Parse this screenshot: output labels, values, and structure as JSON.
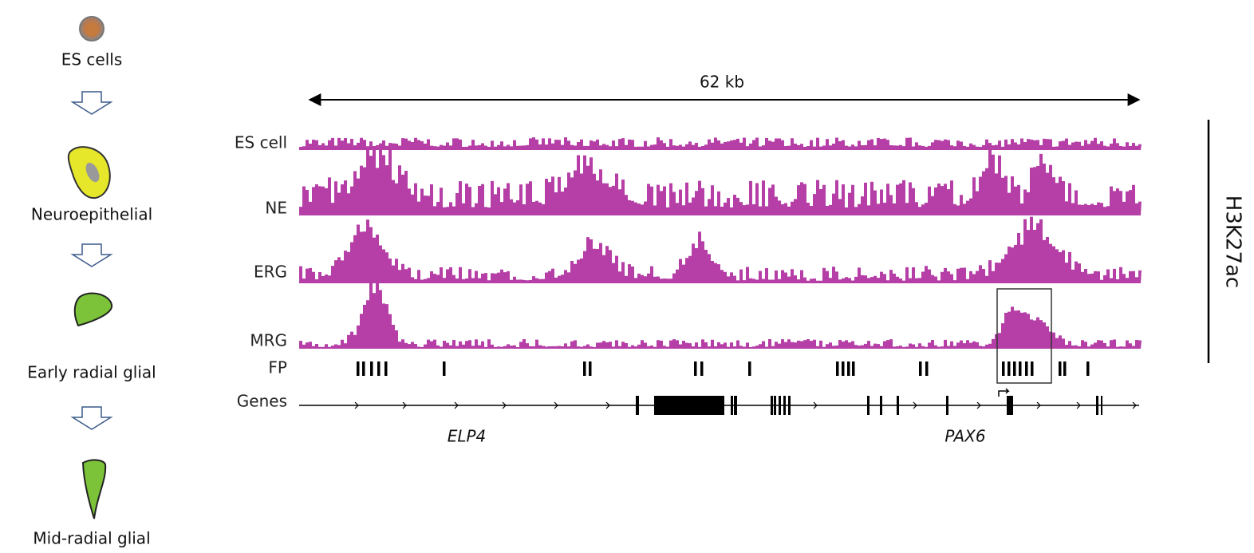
{
  "stages": [
    "ES cells",
    "Neuroepithelial",
    "Early radial glial",
    "Mid-radial glial"
  ],
  "scale": "62 kb",
  "tracks": [
    "ES cell",
    "NE",
    "ERG",
    "MRG"
  ],
  "feature_tracks": [
    "FP",
    "Genes"
  ],
  "genes": [
    "ELP4",
    "PAX6"
  ],
  "mark": "H3K27ac"
}
